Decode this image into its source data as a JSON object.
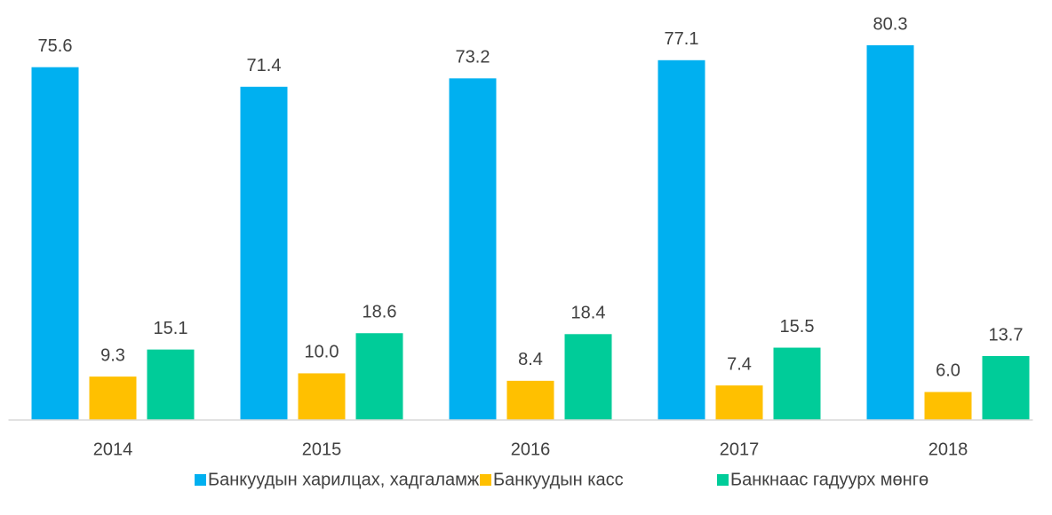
{
  "chart_data": {
    "type": "bar",
    "categories": [
      "2014",
      "2015",
      "2016",
      "2017",
      "2018"
    ],
    "series": [
      {
        "name": "Банкуудын харилцах, хадгаламж",
        "color": "#00b0f0",
        "values": [
          75.6,
          71.4,
          73.2,
          77.1,
          80.3
        ],
        "value_labels": [
          "75.6",
          "71.4",
          "73.2",
          "77.1",
          "80.3"
        ]
      },
      {
        "name": "Банкуудын касс",
        "color": "#ffc000",
        "values": [
          9.3,
          10.0,
          8.4,
          7.4,
          6.0
        ],
        "value_labels": [
          "9.3",
          "10.0",
          "8.4",
          "7.4",
          "6.0"
        ]
      },
      {
        "name": "Банкнаас гадуурх мөнгө",
        "color": "#00cc99",
        "values": [
          15.1,
          18.6,
          18.4,
          15.5,
          13.7
        ],
        "value_labels": [
          "15.1",
          "18.6",
          "18.4",
          "15.5",
          "13.7"
        ]
      }
    ],
    "ylim": [
      0,
      90
    ],
    "grid": false,
    "legend": "bottom"
  }
}
